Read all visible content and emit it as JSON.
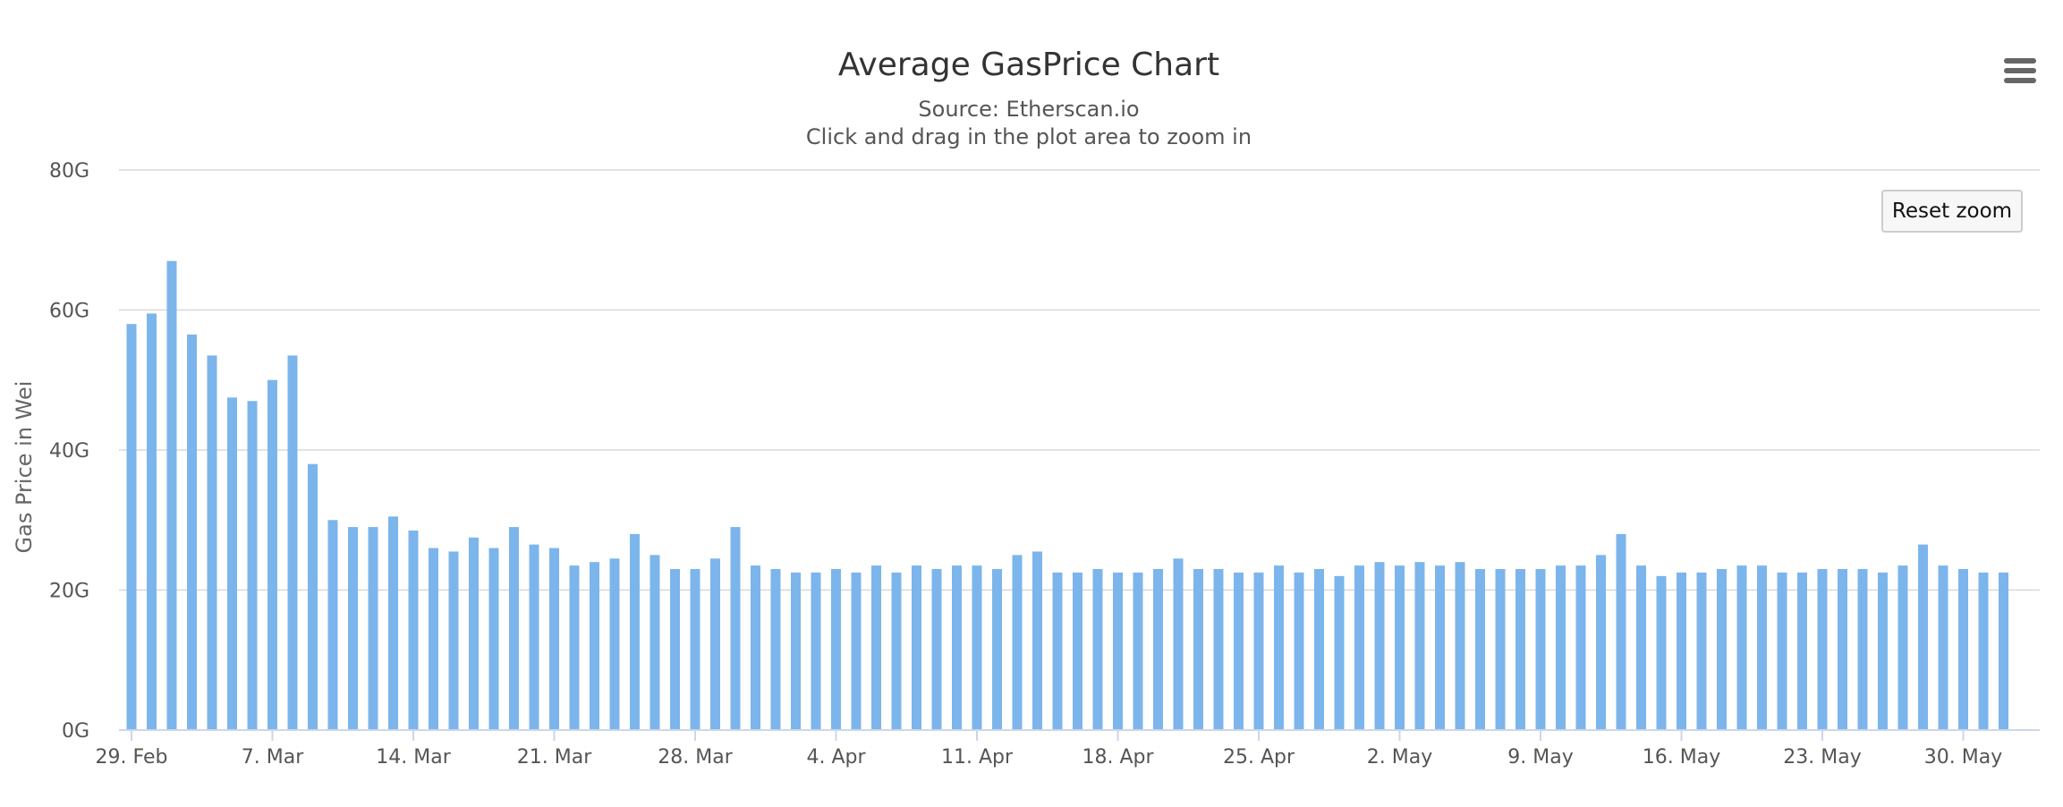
{
  "chart_data": {
    "type": "bar",
    "title": "Average GasPrice Chart",
    "subtitle": "Source: Etherscan.io",
    "instructions": "Click and drag in the plot area to zoom in",
    "xlabel": "",
    "ylabel": "Gas Price in Wei",
    "ylim": [
      0,
      80
    ],
    "y_unit_suffix": "G",
    "yticks": [
      0,
      20,
      40,
      60,
      80
    ],
    "grid": true,
    "legend": "none",
    "bar_color": "#7cb5ec",
    "x_start_date": "2016-02-29",
    "x_tick_labels": [
      "29. Feb",
      "7. Mar",
      "14. Mar",
      "21. Mar",
      "28. Mar",
      "4. Apr",
      "11. Apr",
      "18. Apr",
      "25. Apr",
      "2. May",
      "9. May",
      "16. May",
      "23. May",
      "30. May"
    ],
    "values": [
      58,
      59.5,
      67,
      56.5,
      53.5,
      47.5,
      47,
      50,
      53.5,
      38,
      30,
      29,
      29,
      30.5,
      28.5,
      26,
      25.5,
      27.5,
      26,
      29,
      26.5,
      26,
      23.5,
      24,
      24.5,
      28,
      25,
      23,
      23,
      24.5,
      29,
      23.5,
      23,
      22.5,
      22.5,
      23,
      22.5,
      23.5,
      22.5,
      23.5,
      23,
      23.5,
      23.5,
      23,
      25,
      25.5,
      22.5,
      22.5,
      23,
      22.5,
      22.5,
      23,
      24.5,
      23,
      23,
      22.5,
      22.5,
      23.5,
      22.5,
      23,
      22,
      23.5,
      24,
      23.5,
      24,
      23.5,
      24,
      23,
      23,
      23,
      23,
      23.5,
      23.5,
      25,
      28,
      23.5,
      22,
      22.5,
      22.5,
      23,
      23.5,
      23.5,
      22.5,
      22.5,
      23,
      23,
      23,
      22.5,
      23.5,
      26.5,
      23.5,
      23,
      22.5,
      22.5
    ]
  },
  "toolbar": {
    "reset_zoom_label": "Reset zoom",
    "menu_icon": "hamburger-menu-icon"
  }
}
